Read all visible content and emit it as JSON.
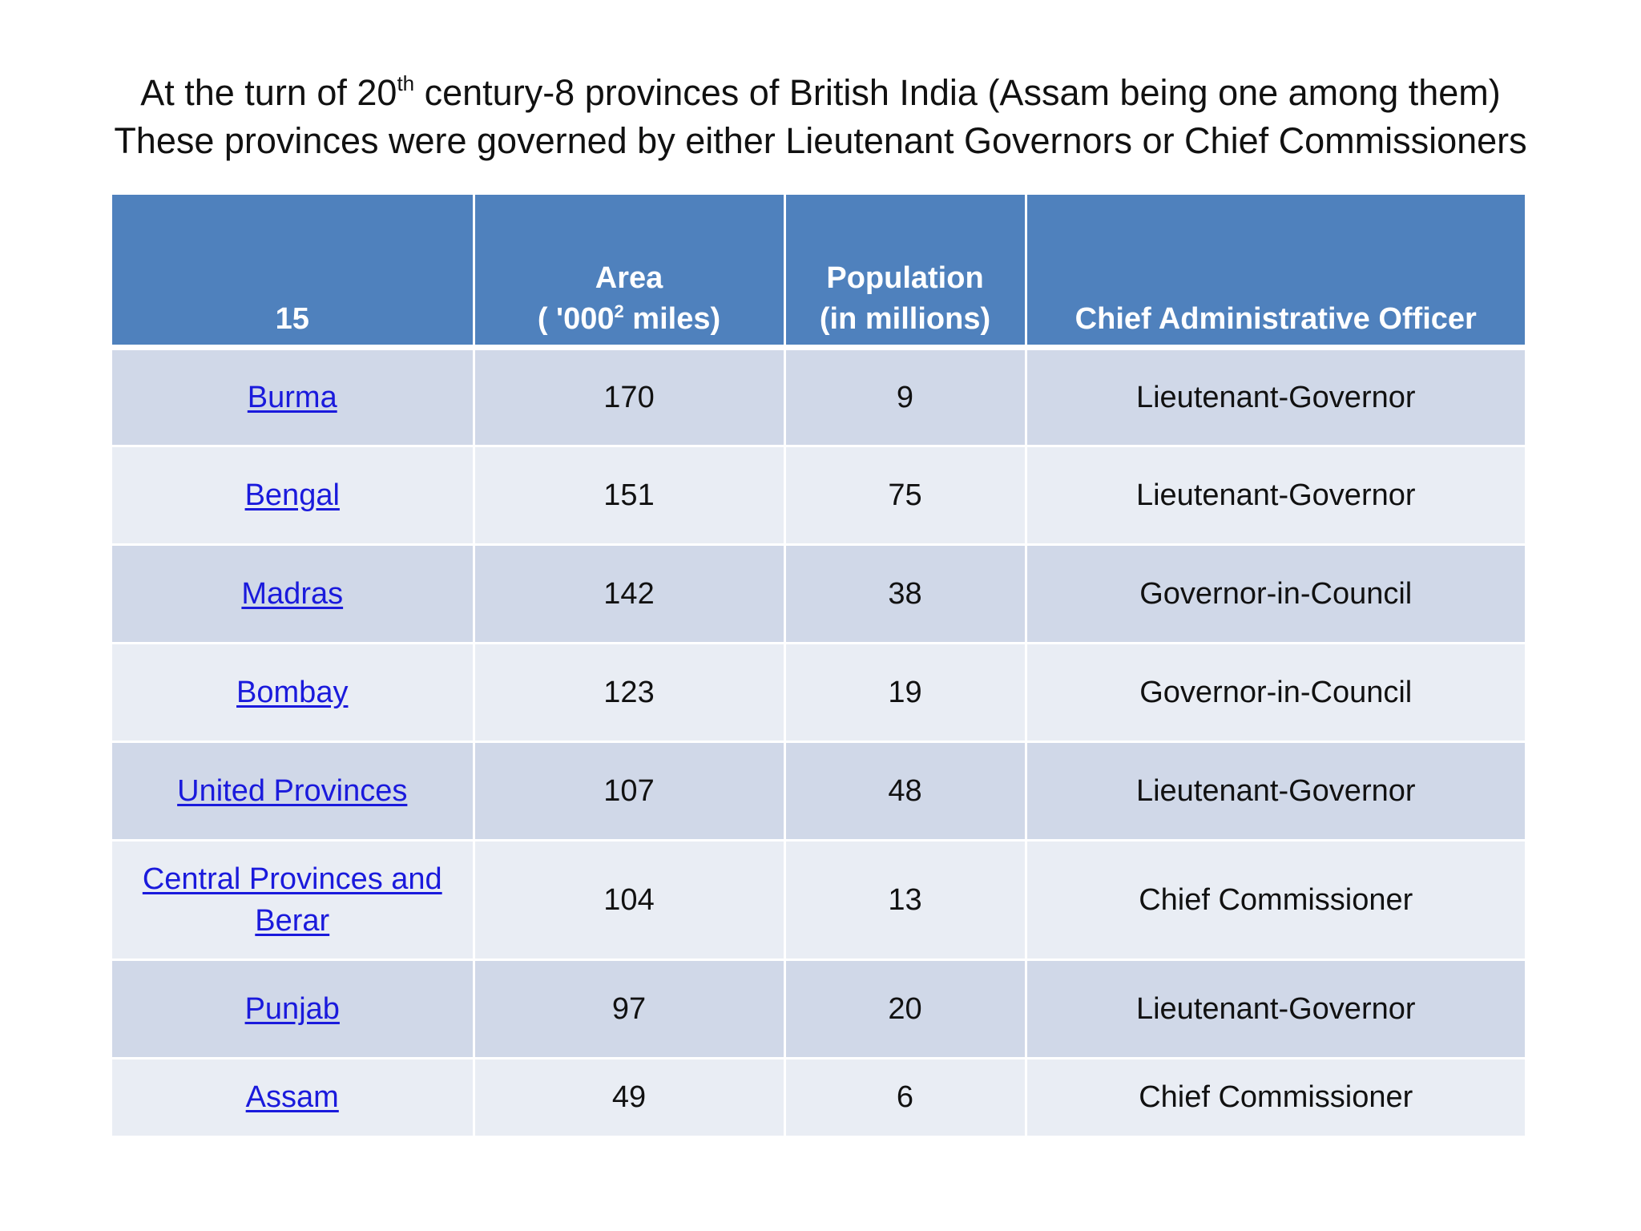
{
  "title": {
    "line1_before": "At the turn of 20",
    "line1_sup": "th",
    "line1_after": " century-8 provinces of British India (Assam being one among them)",
    "line2": "These provinces were governed by either Lieutenant Governors or Chief Commissioners"
  },
  "table": {
    "headers": {
      "col1": "15",
      "col2_line1": "Area",
      "col2_line2_before": "( '000",
      "col2_line2_sup": "2",
      "col2_line2_after": " miles)",
      "col3_line1": "Population",
      "col3_line2": "(in millions)",
      "col4": "Chief Administrative Officer"
    },
    "rows": [
      {
        "province": "Burma",
        "area": "170",
        "population": "9",
        "officer": "Lieutenant-Governor"
      },
      {
        "province": "Bengal",
        "area": "151",
        "population": "75",
        "officer": "Lieutenant-Governor"
      },
      {
        "province": "Madras",
        "area": "142",
        "population": "38",
        "officer": "Governor-in-Council"
      },
      {
        "province": "Bombay",
        "area": "123",
        "population": "19",
        "officer": "Governor-in-Council"
      },
      {
        "province": "United Provinces",
        "area": "107",
        "population": "48",
        "officer": "Lieutenant-Governor"
      },
      {
        "province": "Central Provinces and Berar",
        "area": "104",
        "population": "13",
        "officer": "Chief Commissioner"
      },
      {
        "province": "Punjab",
        "area": "97",
        "population": "20",
        "officer": "Lieutenant-Governor"
      },
      {
        "province": "Assam",
        "area": "49",
        "population": "6",
        "officer": "Chief Commissioner"
      }
    ]
  },
  "colors": {
    "header_bg": "#4f81bd",
    "row_dark": "#d0d8e8",
    "row_light": "#e9edf4",
    "link": "#1a1adc"
  }
}
